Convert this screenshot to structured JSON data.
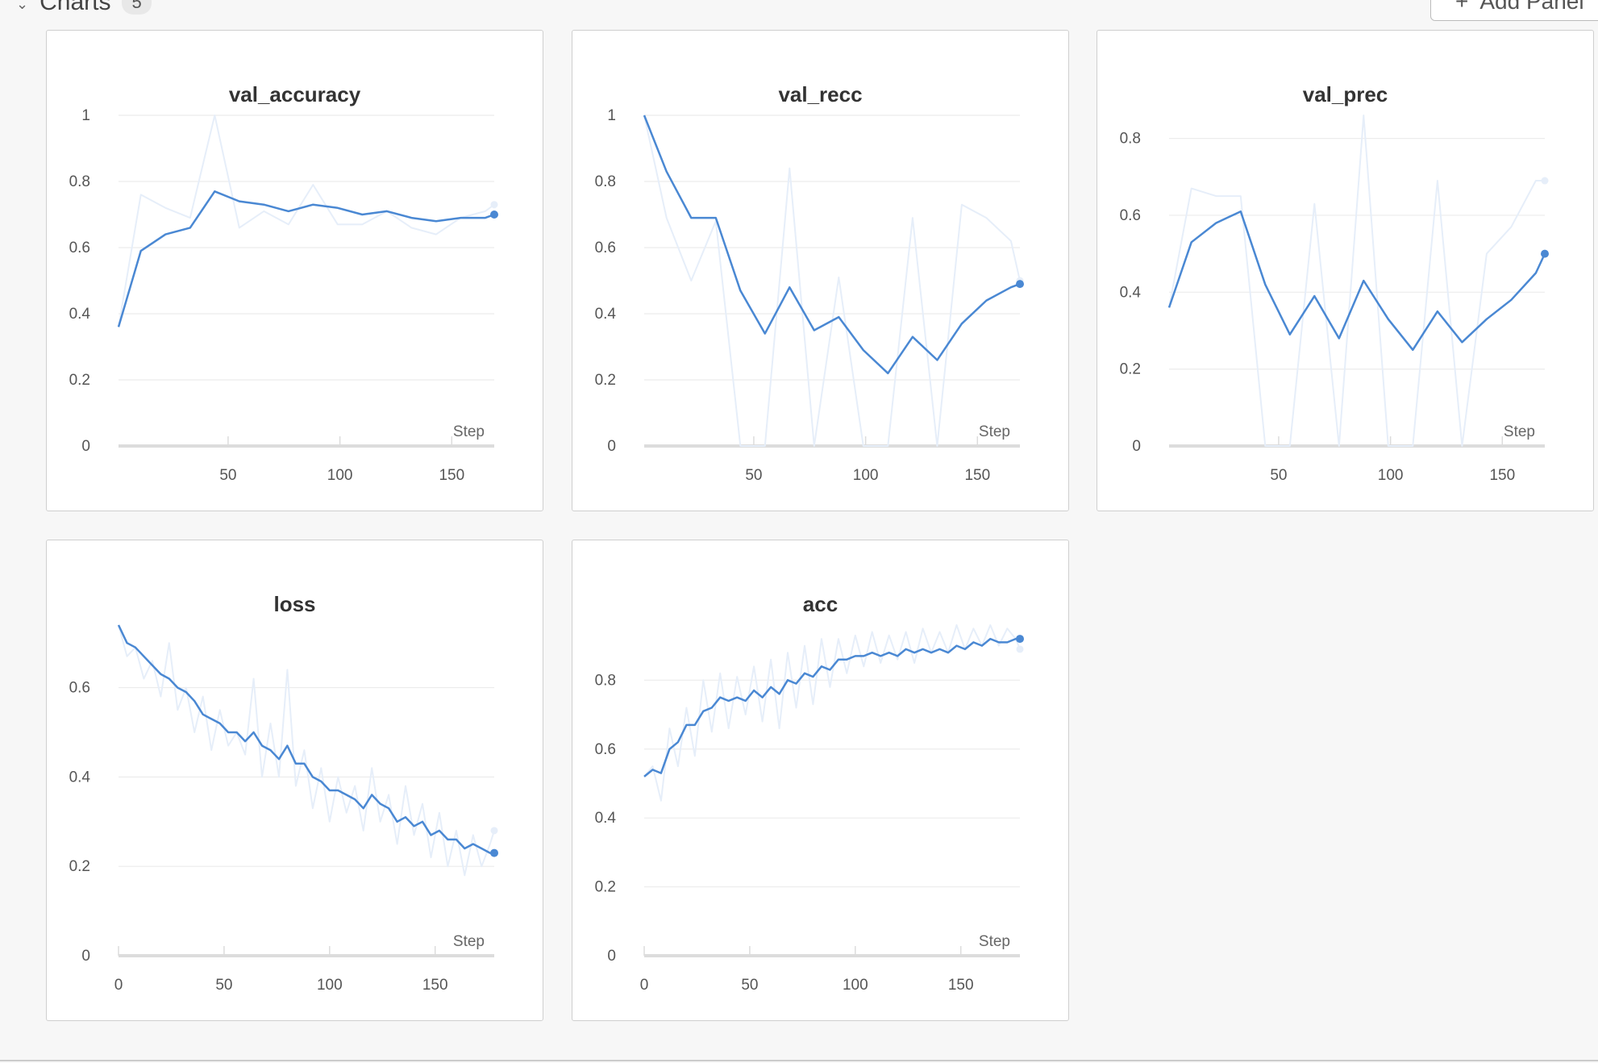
{
  "section": {
    "title": "Charts",
    "count": "5",
    "add_panel_label": "Add Panel"
  },
  "chart_data": [
    {
      "type": "line",
      "title": "val_accuracy",
      "xlabel": "Step",
      "ylim": [
        0,
        1
      ],
      "yticks": [
        0,
        0.2,
        0.4,
        0.6,
        0.8,
        1
      ],
      "xlim": [
        1,
        169
      ],
      "xticks": [
        50,
        100,
        150
      ],
      "series": [
        {
          "style": "raw",
          "x": [
            1,
            11,
            22,
            33,
            44,
            55,
            66,
            77,
            88,
            99,
            110,
            121,
            132,
            143,
            154,
            165,
            169
          ],
          "y": [
            0.36,
            0.76,
            0.72,
            0.69,
            1.0,
            0.66,
            0.71,
            0.67,
            0.79,
            0.67,
            0.67,
            0.71,
            0.66,
            0.64,
            0.69,
            0.71,
            0.73
          ]
        },
        {
          "style": "smoothed",
          "x": [
            1,
            11,
            22,
            33,
            44,
            55,
            66,
            77,
            88,
            99,
            110,
            121,
            132,
            143,
            154,
            165,
            169
          ],
          "y": [
            0.36,
            0.59,
            0.64,
            0.66,
            0.77,
            0.74,
            0.73,
            0.71,
            0.73,
            0.72,
            0.7,
            0.71,
            0.69,
            0.68,
            0.69,
            0.69,
            0.7
          ]
        }
      ]
    },
    {
      "type": "line",
      "title": "val_recc",
      "xlabel": "Step",
      "ylim": [
        0,
        1
      ],
      "yticks": [
        0,
        0.2,
        0.4,
        0.6,
        0.8,
        1
      ],
      "xlim": [
        1,
        169
      ],
      "xticks": [
        50,
        100,
        150
      ],
      "series": [
        {
          "style": "raw",
          "x": [
            1,
            11,
            22,
            33,
            44,
            55,
            66,
            77,
            88,
            99,
            110,
            121,
            132,
            143,
            154,
            165,
            169
          ],
          "y": [
            1.0,
            0.69,
            0.5,
            0.68,
            0.0,
            0.0,
            0.84,
            0.0,
            0.51,
            0.0,
            0.0,
            0.69,
            0.0,
            0.73,
            0.69,
            0.62,
            0.5
          ]
        },
        {
          "style": "smoothed",
          "x": [
            1,
            11,
            22,
            33,
            44,
            55,
            66,
            77,
            88,
            99,
            110,
            121,
            132,
            143,
            154,
            165,
            169
          ],
          "y": [
            1.0,
            0.83,
            0.69,
            0.69,
            0.47,
            0.34,
            0.48,
            0.35,
            0.39,
            0.29,
            0.22,
            0.33,
            0.26,
            0.37,
            0.44,
            0.48,
            0.49
          ]
        }
      ]
    },
    {
      "type": "line",
      "title": "val_prec",
      "xlabel": "Step",
      "ylim": [
        0,
        0.86
      ],
      "yticks": [
        0,
        0.2,
        0.4,
        0.6,
        0.8
      ],
      "xlim": [
        1,
        169
      ],
      "xticks": [
        50,
        100,
        150
      ],
      "series": [
        {
          "style": "raw",
          "x": [
            1,
            11,
            22,
            33,
            44,
            55,
            66,
            77,
            88,
            99,
            110,
            121,
            132,
            143,
            154,
            165,
            169
          ],
          "y": [
            0.36,
            0.67,
            0.65,
            0.65,
            0.0,
            0.0,
            0.63,
            0.0,
            0.86,
            0.0,
            0.0,
            0.69,
            0.0,
            0.5,
            0.57,
            0.69,
            0.69
          ]
        },
        {
          "style": "smoothed",
          "x": [
            1,
            11,
            22,
            33,
            44,
            55,
            66,
            77,
            88,
            99,
            110,
            121,
            132,
            143,
            154,
            165,
            169
          ],
          "y": [
            0.36,
            0.53,
            0.58,
            0.61,
            0.42,
            0.29,
            0.39,
            0.28,
            0.43,
            0.33,
            0.25,
            0.35,
            0.27,
            0.33,
            0.38,
            0.45,
            0.5
          ]
        }
      ]
    },
    {
      "type": "line",
      "title": "loss",
      "xlabel": "Step",
      "ylim": [
        0,
        0.74
      ],
      "yticks": [
        0,
        0.2,
        0.4,
        0.6
      ],
      "xlim": [
        0,
        178
      ],
      "xticks": [
        0,
        50,
        100,
        150
      ],
      "series": [
        {
          "style": "raw",
          "x": [
            0,
            4,
            8,
            12,
            16,
            20,
            24,
            28,
            32,
            36,
            40,
            44,
            48,
            52,
            56,
            60,
            64,
            68,
            72,
            76,
            80,
            84,
            88,
            92,
            96,
            100,
            104,
            108,
            112,
            116,
            120,
            124,
            128,
            132,
            136,
            140,
            144,
            148,
            152,
            156,
            160,
            164,
            168,
            172,
            176,
            178
          ],
          "y": [
            0.74,
            0.67,
            0.69,
            0.62,
            0.66,
            0.58,
            0.7,
            0.55,
            0.6,
            0.5,
            0.58,
            0.46,
            0.55,
            0.47,
            0.5,
            0.45,
            0.62,
            0.4,
            0.52,
            0.4,
            0.64,
            0.38,
            0.46,
            0.33,
            0.42,
            0.3,
            0.4,
            0.32,
            0.38,
            0.28,
            0.42,
            0.3,
            0.36,
            0.25,
            0.38,
            0.27,
            0.34,
            0.22,
            0.32,
            0.2,
            0.28,
            0.18,
            0.27,
            0.2,
            0.25,
            0.28
          ]
        },
        {
          "style": "smoothed",
          "x": [
            0,
            4,
            8,
            12,
            16,
            20,
            24,
            28,
            32,
            36,
            40,
            44,
            48,
            52,
            56,
            60,
            64,
            68,
            72,
            76,
            80,
            84,
            88,
            92,
            96,
            100,
            104,
            108,
            112,
            116,
            120,
            124,
            128,
            132,
            136,
            140,
            144,
            148,
            152,
            156,
            160,
            164,
            168,
            172,
            176,
            178
          ],
          "y": [
            0.74,
            0.7,
            0.69,
            0.67,
            0.65,
            0.63,
            0.62,
            0.6,
            0.59,
            0.57,
            0.54,
            0.53,
            0.52,
            0.5,
            0.5,
            0.48,
            0.5,
            0.47,
            0.46,
            0.44,
            0.47,
            0.43,
            0.43,
            0.4,
            0.39,
            0.37,
            0.37,
            0.36,
            0.35,
            0.33,
            0.36,
            0.34,
            0.33,
            0.3,
            0.31,
            0.29,
            0.3,
            0.27,
            0.28,
            0.26,
            0.26,
            0.24,
            0.25,
            0.24,
            0.23,
            0.23
          ]
        }
      ]
    },
    {
      "type": "line",
      "title": "acc",
      "xlabel": "Step",
      "ylim": [
        0,
        0.96
      ],
      "yticks": [
        0,
        0.2,
        0.4,
        0.6,
        0.8
      ],
      "xlim": [
        0,
        178
      ],
      "xticks": [
        0,
        50,
        100,
        150
      ],
      "series": [
        {
          "style": "raw",
          "x": [
            0,
            4,
            8,
            12,
            16,
            20,
            24,
            28,
            32,
            36,
            40,
            44,
            48,
            52,
            56,
            60,
            64,
            68,
            72,
            76,
            80,
            84,
            88,
            92,
            96,
            100,
            104,
            108,
            112,
            116,
            120,
            124,
            128,
            132,
            136,
            140,
            144,
            148,
            152,
            156,
            160,
            164,
            168,
            172,
            176,
            178
          ],
          "y": [
            0.52,
            0.55,
            0.45,
            0.66,
            0.55,
            0.72,
            0.58,
            0.8,
            0.65,
            0.82,
            0.66,
            0.81,
            0.7,
            0.84,
            0.68,
            0.86,
            0.66,
            0.88,
            0.72,
            0.9,
            0.73,
            0.92,
            0.78,
            0.92,
            0.82,
            0.93,
            0.84,
            0.94,
            0.85,
            0.93,
            0.86,
            0.94,
            0.85,
            0.95,
            0.88,
            0.94,
            0.88,
            0.96,
            0.89,
            0.95,
            0.9,
            0.96,
            0.9,
            0.95,
            0.92,
            0.89
          ]
        },
        {
          "style": "smoothed",
          "x": [
            0,
            4,
            8,
            12,
            16,
            20,
            24,
            28,
            32,
            36,
            40,
            44,
            48,
            52,
            56,
            60,
            64,
            68,
            72,
            76,
            80,
            84,
            88,
            92,
            96,
            100,
            104,
            108,
            112,
            116,
            120,
            124,
            128,
            132,
            136,
            140,
            144,
            148,
            152,
            156,
            160,
            164,
            168,
            172,
            176,
            178
          ],
          "y": [
            0.52,
            0.54,
            0.53,
            0.6,
            0.62,
            0.67,
            0.67,
            0.71,
            0.72,
            0.75,
            0.74,
            0.75,
            0.74,
            0.77,
            0.75,
            0.78,
            0.76,
            0.8,
            0.79,
            0.82,
            0.81,
            0.84,
            0.83,
            0.86,
            0.86,
            0.87,
            0.87,
            0.88,
            0.87,
            0.88,
            0.87,
            0.89,
            0.88,
            0.89,
            0.88,
            0.89,
            0.88,
            0.9,
            0.89,
            0.91,
            0.9,
            0.92,
            0.91,
            0.91,
            0.92,
            0.92
          ]
        }
      ]
    }
  ]
}
